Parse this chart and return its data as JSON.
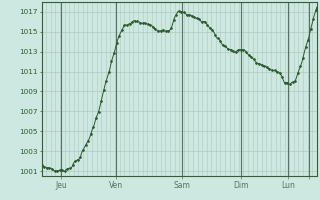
{
  "background_color": "#cce8e0",
  "plot_bg_color": "#cce8e0",
  "line_color": "#2d5a2d",
  "marker_color": "#2d5a2d",
  "grid_color_v": "#b0c8c0",
  "grid_color_h": "#b0c8c0",
  "vline_color": "#5a7060",
  "ylim": [
    1000.5,
    1018.0
  ],
  "yticks": [
    1001,
    1003,
    1005,
    1007,
    1009,
    1011,
    1013,
    1015,
    1017
  ],
  "tick_label_color": "#2d5a2d",
  "x_labels": [
    "Jeu",
    "Ven",
    "Sam",
    "Dim",
    "Lun",
    ""
  ],
  "x_label_positions_norm": [
    0.07,
    0.27,
    0.51,
    0.725,
    0.895,
    0.97
  ],
  "ctrl_x": [
    0.0,
    0.03,
    0.06,
    0.09,
    0.12,
    0.16,
    0.2,
    0.24,
    0.27,
    0.3,
    0.34,
    0.38,
    0.42,
    0.46,
    0.5,
    0.53,
    0.56,
    0.59,
    0.62,
    0.65,
    0.67,
    0.7,
    0.72,
    0.74,
    0.76,
    0.79,
    0.81,
    0.83,
    0.85,
    0.87,
    0.88,
    0.9,
    0.92,
    0.94,
    0.97,
    1.0
  ],
  "ctrl_y": [
    1001.5,
    1001.3,
    1001.0,
    1001.2,
    1001.8,
    1003.5,
    1006.5,
    1010.5,
    1013.5,
    1015.5,
    1016.0,
    1015.8,
    1015.3,
    1015.2,
    1017.0,
    1016.8,
    1016.4,
    1016.0,
    1015.2,
    1014.0,
    1013.5,
    1013.0,
    1013.2,
    1013.0,
    1012.5,
    1011.8,
    1011.5,
    1011.2,
    1011.0,
    1010.8,
    1010.2,
    1009.8,
    1010.0,
    1011.5,
    1014.5,
    1017.5
  ],
  "noise_seed": 7,
  "noise_std": 0.18,
  "noise_sigma": 1.2,
  "n_points": 320,
  "marker_every": 3,
  "marker_size": 1.4,
  "line_width": 0.7
}
